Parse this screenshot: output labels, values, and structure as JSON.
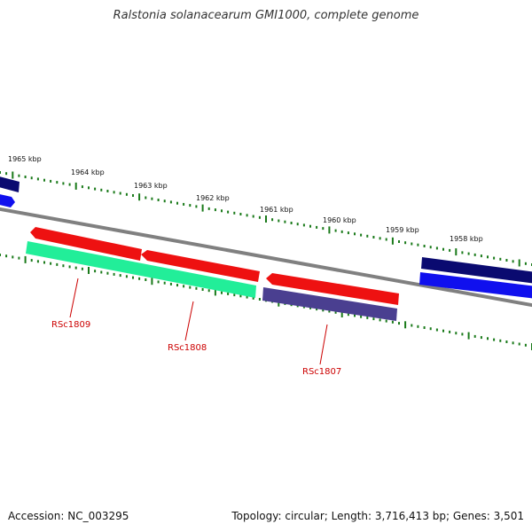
{
  "title": "Ralstonia solanacearum GMI1000, complete genome",
  "footer": {
    "accession": "Accession: NC_003295",
    "summary": "Topology: circular; Length: 3,716,413 bp; Genes: 3,501"
  },
  "scale_labels": [
    "1965 kbp",
    "1964 kbp",
    "1963 kbp",
    "1962 kbp",
    "1961 kbp",
    "1960 kbp",
    "1959 kbp",
    "1958 kbp"
  ],
  "gene_labels": [
    "RSc1809",
    "RSc1808",
    "RSc1807"
  ],
  "colors": {
    "backbone": "#808080",
    "tick": "#1a7a1a",
    "label": "#cc0000",
    "red_gene": "#ee1111",
    "navy_gene": "#0a0a70",
    "blue_gene": "#1010ee",
    "aqua_gene": "#22ee99",
    "slate_gene": "#4a3f90"
  }
}
